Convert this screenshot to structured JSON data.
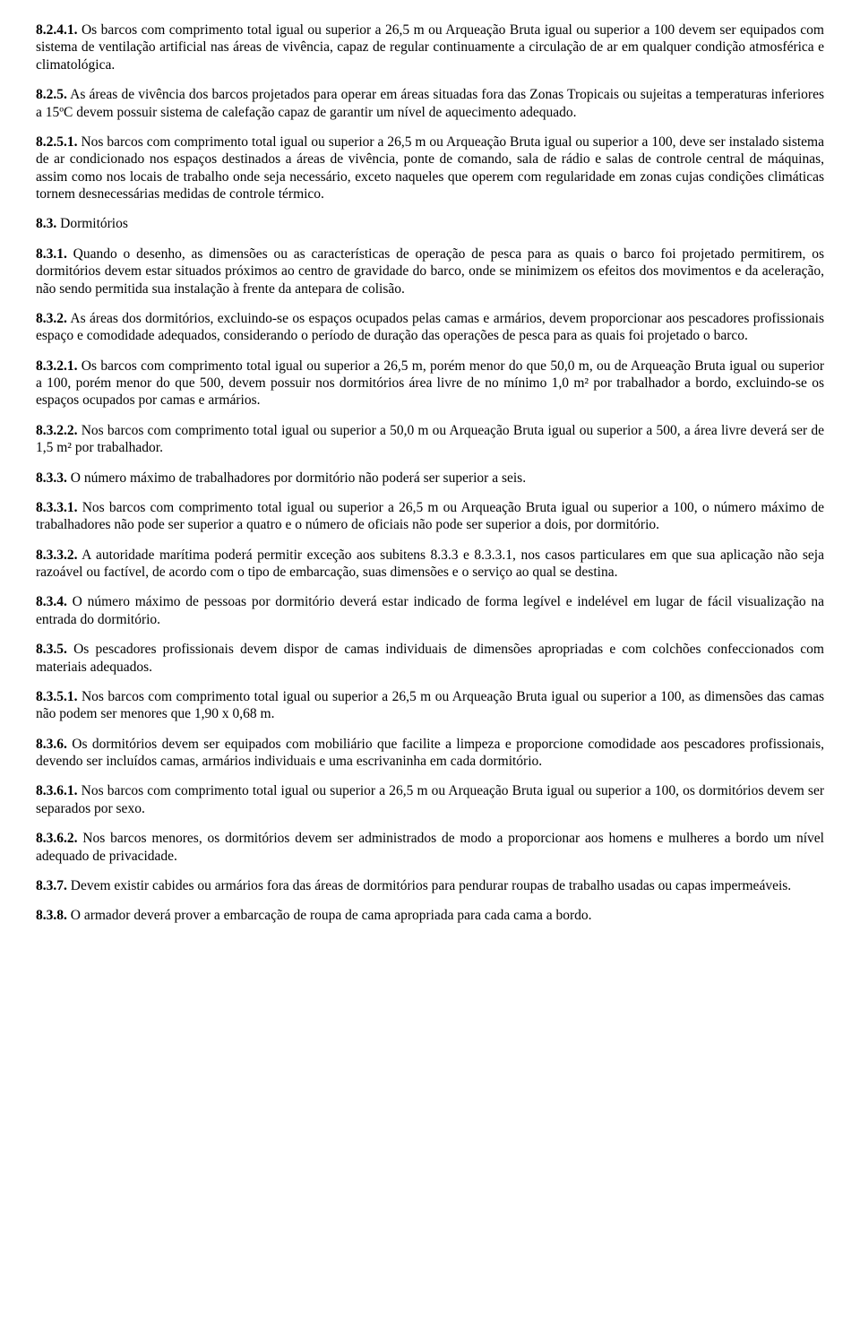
{
  "doc": {
    "paragraphs": [
      {
        "num": "8.2.4.1.",
        "text": " Os barcos com comprimento total igual ou superior a 26,5 m ou Arqueação Bruta igual ou superior a 100 devem ser equipados com sistema de ventilação artificial nas áreas de vivência, capaz de regular continuamente a circulação de ar em qualquer condição atmosférica e climatológica."
      },
      {
        "num": "8.2.5.",
        "text": " As áreas de vivência dos barcos projetados para operar em áreas situadas fora das Zonas Tropicais ou sujeitas a temperaturas inferiores a 15ºC devem possuir sistema de calefação capaz de garantir um nível de aquecimento adequado."
      },
      {
        "num": "8.2.5.1.",
        "text": " Nos barcos com comprimento total igual ou superior a 26,5 m ou Arqueação Bruta igual ou superior a 100, deve ser instalado sistema de ar condicionado nos espaços destinados a áreas de vivência, ponte de comando, sala de rádio e salas de controle central de máquinas, assim como nos locais de trabalho onde seja necessário, exceto naqueles que operem com regularidade em zonas cujas condições climáticas tornem desnecessárias medidas de controle térmico."
      },
      {
        "num": "8.3.",
        "text": " Dormitórios"
      },
      {
        "num": "8.3.1.",
        "text": " Quando o desenho, as dimensões ou as características de operação de pesca para as quais o barco foi projetado permitirem, os dormitórios devem estar situados próximos ao centro de gravidade do barco, onde se minimizem os efeitos dos movimentos e da aceleração, não sendo permitida sua instalação à frente da antepara de colisão."
      },
      {
        "num": "8.3.2.",
        "text": " As áreas dos dormitórios, excluindo-se os espaços ocupados pelas camas e armários, devem proporcionar aos pescadores profissionais espaço e comodidade adequados, considerando o período de duração das operações de pesca para as quais foi projetado o barco."
      },
      {
        "num": "8.3.2.1.",
        "text": " Os barcos com comprimento total igual ou superior a 26,5 m, porém menor do que 50,0 m, ou de Arqueação Bruta igual ou superior a 100, porém menor do que 500, devem possuir nos dormitórios área livre de no mínimo 1,0 m² por trabalhador a bordo, excluindo-se os espaços ocupados por camas e armários."
      },
      {
        "num": "8.3.2.2.",
        "text": " Nos barcos com comprimento total igual ou superior a 50,0 m ou Arqueação Bruta igual ou superior a 500, a área livre deverá ser de 1,5 m² por trabalhador."
      },
      {
        "num": "8.3.3.",
        "text": " O número máximo de trabalhadores por dormitório não poderá ser superior a seis."
      },
      {
        "num": "8.3.3.1.",
        "text": " Nos barcos com comprimento total igual ou superior a 26,5 m ou Arqueação Bruta igual ou superior a 100, o número máximo de trabalhadores não pode ser superior a quatro e o número de oficiais não pode ser superior a dois, por dormitório."
      },
      {
        "num": "8.3.3.2.",
        "text": " A autoridade marítima poderá permitir exceção aos subitens 8.3.3 e 8.3.3.1, nos casos particulares em que sua aplicação não seja razoável ou factível, de acordo com o tipo de embarcação, suas dimensões e o serviço ao qual se destina."
      },
      {
        "num": "8.3.4.",
        "text": " O número máximo de pessoas por dormitório deverá estar indicado de forma legível e indelével em lugar de fácil visualização na entrada do dormitório."
      },
      {
        "num": "8.3.5.",
        "text": " Os pescadores profissionais devem dispor de camas individuais de dimensões apropriadas e com colchões confeccionados com materiais adequados."
      },
      {
        "num": "8.3.5.1.",
        "text": " Nos barcos com comprimento total igual ou superior a 26,5 m ou Arqueação Bruta igual ou superior a 100, as dimensões das camas não podem ser menores que 1,90 x 0,68 m."
      },
      {
        "num": "8.3.6.",
        "text": " Os dormitórios devem ser equipados com mobiliário que facilite a limpeza e proporcione comodidade aos pescadores profissionais, devendo ser incluídos camas, armários individuais e uma escrivaninha em cada dormitório."
      },
      {
        "num": "8.3.6.1.",
        "text": " Nos barcos com comprimento total igual ou superior a 26,5 m ou Arqueação Bruta igual ou superior a 100, os dormitórios devem ser separados por sexo."
      },
      {
        "num": "8.3.6.2.",
        "text": " Nos barcos menores, os dormitórios devem ser administrados de modo a proporcionar aos homens e mulheres a bordo um nível adequado de privacidade."
      },
      {
        "num": "8.3.7.",
        "text": " Devem existir cabides ou armários fora das áreas de dormitórios para pendurar roupas de trabalho usadas ou capas impermeáveis."
      },
      {
        "num": "8.3.8.",
        "text": " O armador deverá prover a embarcação de roupa de cama apropriada para cada cama a bordo."
      }
    ]
  }
}
